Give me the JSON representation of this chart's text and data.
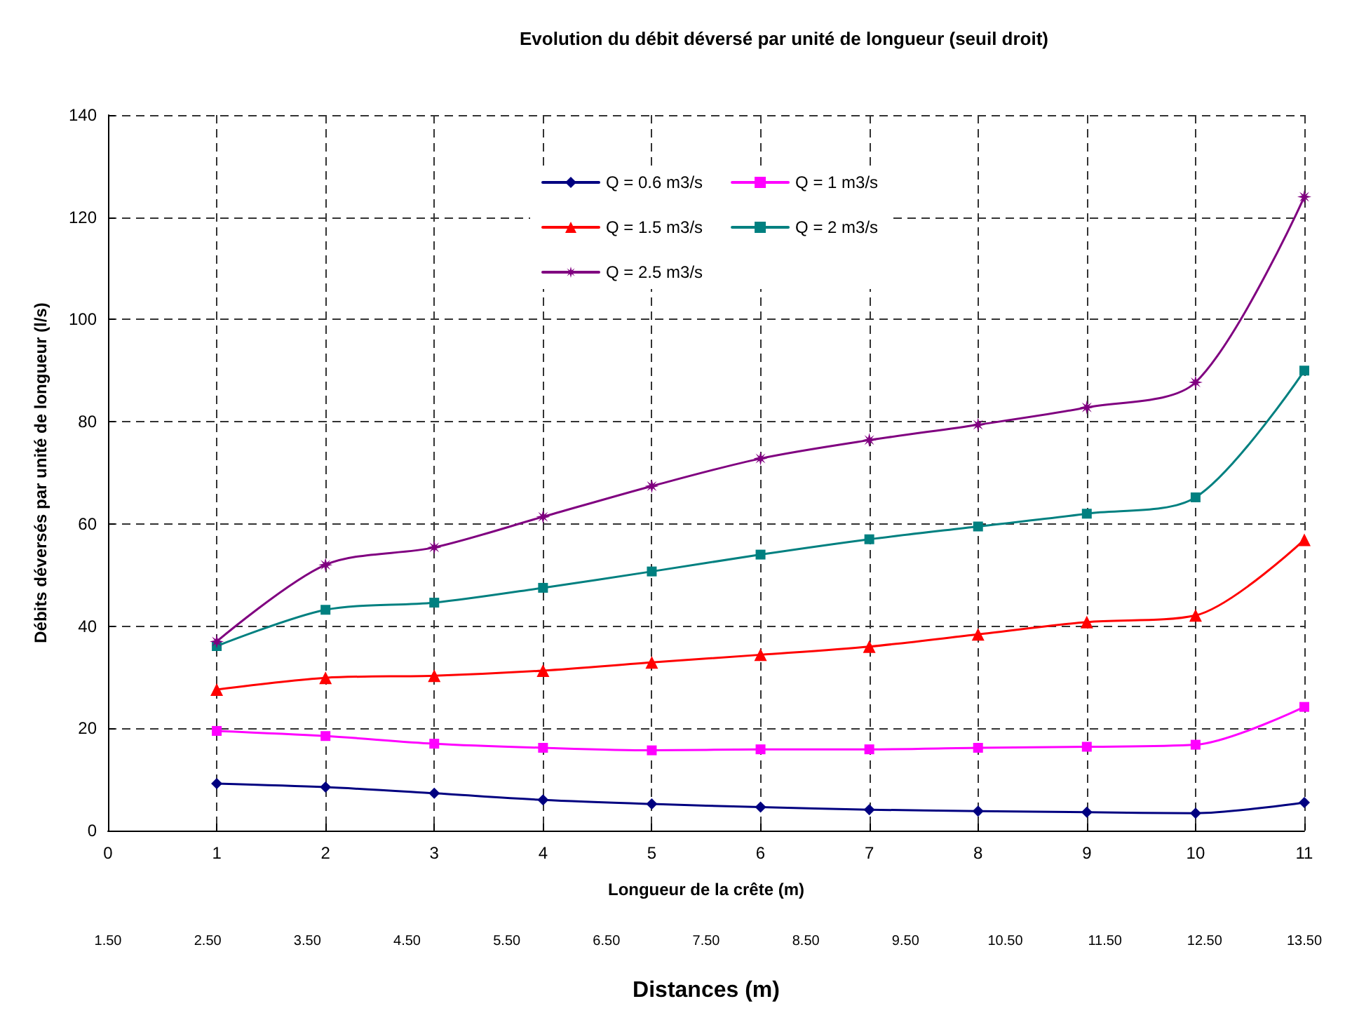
{
  "chart_data": {
    "type": "line",
    "title": "Evolution du débit déversé par unité de longueur (seuil droit)",
    "xlabel": "Longueur de la crête (m)",
    "ylabel": "Débits déversés par unité de longueur (l/s)",
    "x2label": "Distances (m)",
    "x": [
      1,
      2,
      3,
      4,
      5,
      6,
      7,
      8,
      9,
      10,
      11
    ],
    "xlim": [
      0,
      11
    ],
    "xticks": [
      0,
      1,
      2,
      3,
      4,
      5,
      6,
      7,
      8,
      9,
      10,
      11
    ],
    "x2lim": [
      1.5,
      13.5
    ],
    "x2ticks": [
      {
        "value": 1.5,
        "label": "1.50"
      },
      {
        "value": 2.5,
        "label": "2.50"
      },
      {
        "value": 3.5,
        "label": "3.50"
      },
      {
        "value": 4.5,
        "label": "4.50"
      },
      {
        "value": 5.5,
        "label": "5.50"
      },
      {
        "value": 6.5,
        "label": "6.50"
      },
      {
        "value": 7.5,
        "label": "7.50"
      },
      {
        "value": 8.5,
        "label": "8.50"
      },
      {
        "value": 9.5,
        "label": "9.50"
      },
      {
        "value": 10.5,
        "label": "10.50"
      },
      {
        "value": 11.5,
        "label": "11.50"
      },
      {
        "value": 12.5,
        "label": "12.50"
      },
      {
        "value": 13.5,
        "label": "13.50"
      }
    ],
    "ylim": [
      0,
      140
    ],
    "yticks": [
      0,
      20,
      40,
      60,
      80,
      100,
      120,
      140
    ],
    "grid": true,
    "legend": "top",
    "line_style": "solid",
    "series": [
      {
        "name": "Q = 0.6 m3/s",
        "color": "#000080",
        "marker": "diamond",
        "values": [
          9.2,
          8.5,
          7.3,
          6.0,
          5.2,
          4.6,
          4.1,
          3.8,
          3.6,
          3.4,
          5.5
        ]
      },
      {
        "name": "Q = 1 m3/s",
        "color": "#ff00ff",
        "marker": "square",
        "values": [
          19.5,
          18.5,
          17.0,
          16.2,
          15.7,
          15.9,
          15.9,
          16.2,
          16.4,
          16.8,
          24.2
        ]
      },
      {
        "name": "Q = 1.5 m3/s",
        "color": "#ff0000",
        "marker": "triangle",
        "values": [
          27.6,
          29.9,
          30.3,
          31.3,
          32.9,
          34.4,
          36.0,
          38.4,
          40.8,
          42.1,
          56.9
        ]
      },
      {
        "name": "Q = 2 m3/s",
        "color": "#008080",
        "marker": "square",
        "values": [
          36.1,
          43.2,
          44.6,
          47.5,
          50.7,
          54.0,
          57.0,
          59.5,
          62.0,
          65.2,
          90.0
        ]
      },
      {
        "name": "Q = 2.5 m3/s",
        "color": "#800080",
        "marker": "star",
        "values": [
          37.0,
          52.0,
          55.4,
          61.4,
          67.4,
          72.8,
          76.4,
          79.4,
          82.8,
          87.7,
          124.0
        ]
      }
    ]
  }
}
